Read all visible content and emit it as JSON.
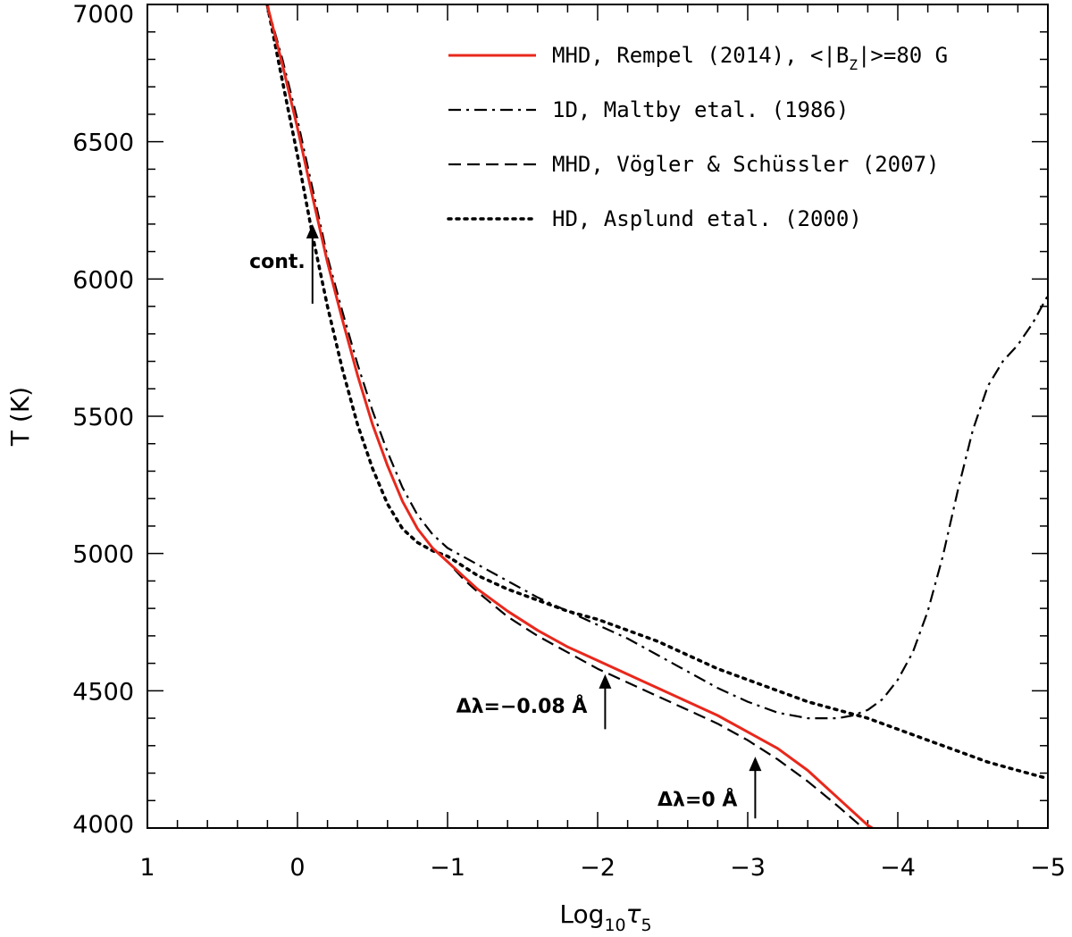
{
  "chart_data": {
    "type": "line",
    "title": "",
    "xlabel": "Log",
    "xlabel_sub": "10",
    "xlabel_symbol": "τ",
    "xlabel_symbol_sub": "5",
    "ylabel": "T (K)",
    "xlim": [
      1,
      -5
    ],
    "ylim": [
      4000,
      7000
    ],
    "x_ticks": [
      1,
      0,
      -1,
      -2,
      -3,
      -4,
      -5
    ],
    "x_tick_labels": [
      "1",
      "0",
      "−1",
      "−2",
      "−3",
      "−4",
      "−5"
    ],
    "y_ticks": [
      4000,
      4500,
      5000,
      5500,
      6000,
      6500,
      7000
    ],
    "y_tick_labels": [
      "4000",
      "4500",
      "5000",
      "5500",
      "6000",
      "6500",
      "7000"
    ],
    "legend_position": "top-right",
    "colors": {
      "rempel": "#e8281c",
      "black": "#000000"
    },
    "series": [
      {
        "name": "MHD, Rempel (2014), <|B",
        "legend_sub": "Z",
        "legend_suffix": "|>=80 G",
        "style": "solid",
        "color": "#e8281c",
        "x": [
          0.2,
          0.1,
          0.0,
          -0.1,
          -0.2,
          -0.3,
          -0.4,
          -0.5,
          -0.6,
          -0.7,
          -0.8,
          -0.9,
          -1.0,
          -1.1,
          -1.2,
          -1.4,
          -1.6,
          -1.8,
          -2.0,
          -2.2,
          -2.4,
          -2.6,
          -2.8,
          -3.0,
          -3.2,
          -3.4,
          -3.6,
          -3.8,
          -3.86
        ],
        "y": [
          6995,
          6780,
          6550,
          6300,
          6060,
          5850,
          5650,
          5470,
          5320,
          5190,
          5090,
          5020,
          4970,
          4920,
          4870,
          4790,
          4720,
          4660,
          4610,
          4560,
          4510,
          4460,
          4410,
          4350,
          4290,
          4210,
          4110,
          4010,
          3990
        ]
      },
      {
        "name": "1D, Maltby etal. (1986)",
        "style": "dashdot",
        "color": "#000000",
        "x": [
          0.2,
          0.1,
          0.0,
          -0.1,
          -0.2,
          -0.3,
          -0.4,
          -0.5,
          -0.6,
          -0.7,
          -0.8,
          -0.9,
          -1.0,
          -1.2,
          -1.4,
          -1.6,
          -1.8,
          -2.0,
          -2.2,
          -2.4,
          -2.6,
          -2.8,
          -3.0,
          -3.2,
          -3.4,
          -3.6,
          -3.7,
          -3.8,
          -3.9,
          -4.0,
          -4.1,
          -4.2,
          -4.3,
          -4.4,
          -4.5,
          -4.6,
          -4.7,
          -4.8,
          -4.9,
          -5.0
        ],
        "y": [
          6995,
          6800,
          6580,
          6330,
          6080,
          5880,
          5690,
          5520,
          5370,
          5240,
          5140,
          5070,
          5020,
          4960,
          4900,
          4840,
          4790,
          4740,
          4690,
          4630,
          4570,
          4510,
          4460,
          4420,
          4400,
          4400,
          4410,
          4430,
          4470,
          4540,
          4640,
          4790,
          4990,
          5230,
          5450,
          5610,
          5700,
          5760,
          5840,
          5940
        ]
      },
      {
        "name": "MHD, Vögler & Schüssler (2007)",
        "style": "dashed",
        "color": "#000000",
        "x": [
          0.2,
          0.1,
          0.0,
          -0.1,
          -0.2,
          -0.3,
          -0.4,
          -0.5,
          -0.6,
          -0.7,
          -0.8,
          -0.9,
          -1.0,
          -1.1,
          -1.2,
          -1.4,
          -1.6,
          -1.8,
          -2.0,
          -2.2,
          -2.4,
          -2.6,
          -2.8,
          -3.0,
          -3.2,
          -3.4,
          -3.6,
          -3.8
        ],
        "y": [
          6995,
          6780,
          6550,
          6300,
          6060,
          5850,
          5650,
          5470,
          5320,
          5190,
          5090,
          5020,
          4970,
          4910,
          4860,
          4770,
          4700,
          4640,
          4580,
          4530,
          4480,
          4430,
          4380,
          4320,
          4250,
          4170,
          4080,
          3985
        ]
      },
      {
        "name": "HD, Asplund etal. (2000)",
        "style": "dotted",
        "color": "#000000",
        "x": [
          0.2,
          0.1,
          0.0,
          -0.1,
          -0.2,
          -0.3,
          -0.4,
          -0.5,
          -0.6,
          -0.7,
          -0.8,
          -0.9,
          -1.0,
          -1.2,
          -1.4,
          -1.6,
          -1.8,
          -2.0,
          -2.2,
          -2.4,
          -2.6,
          -2.8,
          -3.0,
          -3.2,
          -3.4,
          -3.6,
          -3.8,
          -4.0,
          -4.2,
          -4.4,
          -4.6,
          -4.8,
          -5.0
        ],
        "y": [
          6995,
          6720,
          6450,
          6160,
          5900,
          5670,
          5470,
          5310,
          5180,
          5090,
          5040,
          5010,
          4990,
          4920,
          4870,
          4830,
          4790,
          4760,
          4720,
          4680,
          4630,
          4580,
          4540,
          4500,
          4460,
          4430,
          4400,
          4360,
          4320,
          4280,
          4240,
          4210,
          4180
        ]
      }
    ],
    "annotations": [
      {
        "label": "cont.",
        "x": -0.1,
        "y_tip": 6200,
        "y_tail": 5910
      },
      {
        "label": "Δλ=−0.08 Å",
        "x": -2.05,
        "y_tip": 4560,
        "y_tail": 4360
      },
      {
        "label": "Δλ=0 Å",
        "x": -3.05,
        "y_tip": 4260,
        "y_tail": 4035
      }
    ]
  }
}
